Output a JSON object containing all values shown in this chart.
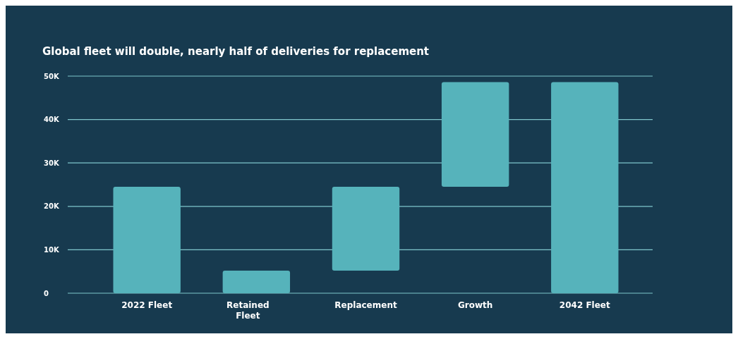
{
  "chart_data": {
    "type": "bar",
    "title": "Global fleet will double, nearly half of deliveries for replacement",
    "categories": [
      "2022 Fleet",
      "Retained Fleet",
      "Replacement",
      "Growth",
      "2042 Fleet"
    ],
    "values": [
      24500,
      5200,
      19300,
      24100,
      48600
    ],
    "base": [
      0,
      0,
      5200,
      24500,
      0
    ],
    "color": "#56b3bb",
    "ylim": [
      0,
      50000
    ],
    "yticks": [
      {
        "value": 0,
        "label": "0"
      },
      {
        "value": 10000,
        "label": "10K"
      },
      {
        "value": 20000,
        "label": "20K"
      },
      {
        "value": 30000,
        "label": "30K"
      },
      {
        "value": 40000,
        "label": "40K"
      },
      {
        "value": 50000,
        "label": "50K"
      }
    ],
    "grid": true
  }
}
